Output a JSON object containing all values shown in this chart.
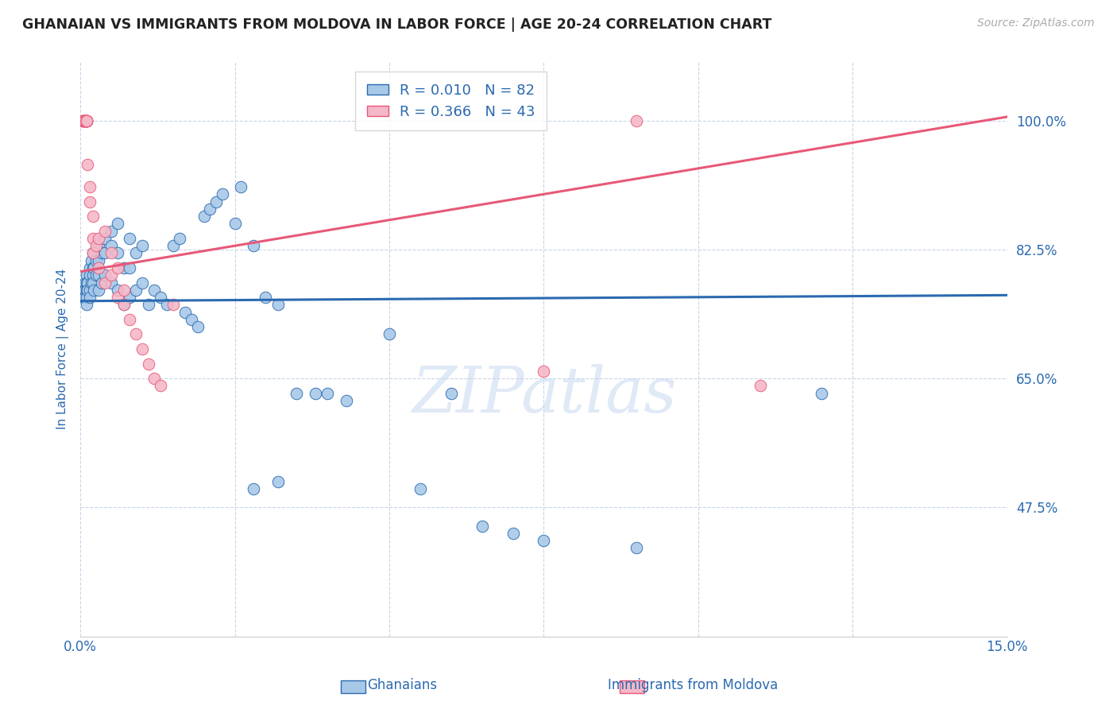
{
  "title": "GHANAIAN VS IMMIGRANTS FROM MOLDOVA IN LABOR FORCE | AGE 20-24 CORRELATION CHART",
  "source": "Source: ZipAtlas.com",
  "ylabel": "In Labor Force | Age 20-24",
  "x_min": 0.0,
  "x_max": 0.15,
  "y_min": 0.3,
  "y_max": 1.08,
  "x_ticks": [
    0.0,
    0.025,
    0.05,
    0.075,
    0.1,
    0.125,
    0.15
  ],
  "y_ticks": [
    0.475,
    0.65,
    0.825,
    1.0
  ],
  "legend_blue_r": "R = 0.010",
  "legend_blue_n": "N = 82",
  "legend_pink_r": "R = 0.366",
  "legend_pink_n": "N = 43",
  "blue_color": "#a8c8e8",
  "pink_color": "#f5b8c8",
  "line_blue_color": "#2a6ab0",
  "line_pink_color": "#e85878",
  "title_color": "#222222",
  "axis_label_color": "#2a6ab0",
  "tick_label_color": "#2a6ab0",
  "grid_color": "#c8d4e8",
  "watermark_color": "#c8d8f0",
  "blue_scatter_x": [
    0.0005,
    0.0005,
    0.0008,
    0.0008,
    0.0008,
    0.001,
    0.001,
    0.001,
    0.001,
    0.001,
    0.0012,
    0.0012,
    0.0015,
    0.0015,
    0.0015,
    0.0015,
    0.0018,
    0.0018,
    0.002,
    0.002,
    0.002,
    0.002,
    0.0022,
    0.0022,
    0.0025,
    0.0025,
    0.003,
    0.003,
    0.003,
    0.003,
    0.0035,
    0.0035,
    0.004,
    0.004,
    0.004,
    0.005,
    0.005,
    0.005,
    0.006,
    0.006,
    0.006,
    0.007,
    0.007,
    0.008,
    0.008,
    0.008,
    0.009,
    0.009,
    0.01,
    0.01,
    0.011,
    0.012,
    0.013,
    0.014,
    0.015,
    0.016,
    0.017,
    0.018,
    0.019,
    0.02,
    0.021,
    0.022,
    0.023,
    0.025,
    0.026,
    0.028,
    0.03,
    0.032,
    0.035,
    0.038,
    0.04,
    0.043,
    0.05,
    0.055,
    0.06,
    0.065,
    0.07,
    0.075,
    0.09,
    0.12,
    0.028,
    0.032
  ],
  "blue_scatter_y": [
    0.77,
    0.76,
    0.78,
    0.77,
    0.76,
    0.79,
    0.78,
    0.77,
    0.76,
    0.75,
    0.78,
    0.77,
    0.8,
    0.79,
    0.77,
    0.76,
    0.81,
    0.78,
    0.82,
    0.8,
    0.79,
    0.78,
    0.8,
    0.77,
    0.81,
    0.79,
    0.83,
    0.81,
    0.79,
    0.77,
    0.82,
    0.78,
    0.84,
    0.82,
    0.79,
    0.85,
    0.83,
    0.78,
    0.86,
    0.82,
    0.77,
    0.8,
    0.75,
    0.84,
    0.8,
    0.76,
    0.82,
    0.77,
    0.83,
    0.78,
    0.75,
    0.77,
    0.76,
    0.75,
    0.83,
    0.84,
    0.74,
    0.73,
    0.72,
    0.87,
    0.88,
    0.89,
    0.9,
    0.86,
    0.91,
    0.83,
    0.76,
    0.75,
    0.63,
    0.63,
    0.63,
    0.62,
    0.71,
    0.5,
    0.63,
    0.45,
    0.44,
    0.43,
    0.42,
    0.63,
    0.5,
    0.51
  ],
  "pink_scatter_x": [
    0.0003,
    0.0005,
    0.0005,
    0.0005,
    0.0005,
    0.0008,
    0.0008,
    0.0008,
    0.001,
    0.001,
    0.001,
    0.001,
    0.001,
    0.001,
    0.001,
    0.001,
    0.0012,
    0.0015,
    0.0015,
    0.002,
    0.002,
    0.002,
    0.0025,
    0.003,
    0.003,
    0.004,
    0.004,
    0.005,
    0.005,
    0.006,
    0.006,
    0.007,
    0.007,
    0.008,
    0.009,
    0.01,
    0.011,
    0.012,
    0.013,
    0.015,
    0.075,
    0.09,
    0.11
  ],
  "pink_scatter_y": [
    1.0,
    1.0,
    1.0,
    1.0,
    1.0,
    1.0,
    1.0,
    1.0,
    1.0,
    1.0,
    1.0,
    1.0,
    1.0,
    1.0,
    1.0,
    1.0,
    0.94,
    0.91,
    0.89,
    0.87,
    0.84,
    0.82,
    0.83,
    0.8,
    0.84,
    0.78,
    0.85,
    0.79,
    0.82,
    0.76,
    0.8,
    0.77,
    0.75,
    0.73,
    0.71,
    0.69,
    0.67,
    0.65,
    0.64,
    0.75,
    0.66,
    1.0,
    0.64
  ],
  "blue_trend_x": [
    0.0,
    0.15
  ],
  "blue_trend_y": [
    0.755,
    0.763
  ],
  "pink_trend_x": [
    0.0,
    0.15
  ],
  "pink_trend_y": [
    0.795,
    1.005
  ]
}
